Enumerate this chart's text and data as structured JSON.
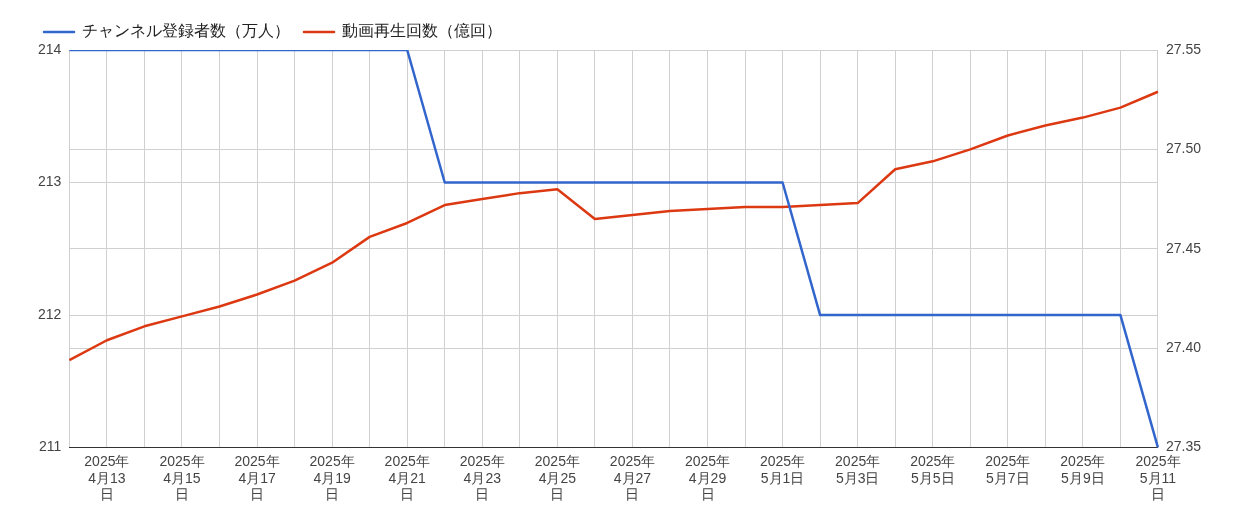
{
  "chart_data": {
    "type": "line",
    "categories": [
      null,
      "2025年4月13日",
      null,
      "2025年4月15日",
      null,
      "2025年4月17日",
      null,
      "2025年4月19日",
      null,
      "2025年4月21日",
      null,
      "2025年4月23日",
      null,
      "2025年4月25日",
      null,
      "2025年4月27日",
      null,
      "2025年4月29日",
      null,
      "2025年5月1日",
      null,
      "2025年5月3日",
      null,
      "2025年5月5日",
      null,
      "2025年5月7日",
      null,
      "2025年5月9日",
      null,
      "2025年5月11日"
    ],
    "series": [
      {
        "name": "チャンネル登録者数（万人）",
        "color": "#3366cc",
        "values": [
          214,
          214,
          214,
          214,
          214,
          214,
          214,
          214,
          214,
          214,
          213,
          213,
          213,
          213,
          213,
          213,
          213,
          213,
          213,
          213,
          212,
          212,
          212,
          212,
          212,
          212,
          212,
          212,
          212,
          211
        ]
      },
      {
        "name": "動画再生回数（億回）",
        "color": "#dc3912",
        "axis": "y2",
        "values": [
          27.394,
          27.404,
          27.411,
          27.416,
          27.421,
          27.427,
          27.434,
          27.443,
          27.456,
          27.463,
          27.472,
          27.475,
          27.478,
          27.48,
          27.465,
          27.467,
          27.469,
          27.47,
          27.471,
          27.471,
          27.472,
          27.473,
          27.49,
          27.494,
          27.5,
          27.507,
          27.512,
          27.516,
          27.521,
          27.529
        ]
      }
    ],
    "ylim": [
      211,
      214
    ],
    "yticks": [
      211,
      212,
      213,
      214
    ],
    "y2lim": [
      27.35,
      27.55
    ],
    "y2ticks": [
      {
        "value": 27.35,
        "label": "27.35"
      },
      {
        "value": 27.4,
        "label": "27.40"
      },
      {
        "value": 27.45,
        "label": "27.45"
      },
      {
        "value": 27.5,
        "label": "27.50"
      },
      {
        "value": 27.55,
        "label": "27.55"
      }
    ],
    "grid": true,
    "legend": "top left",
    "marker": "none",
    "line_style": "solid"
  }
}
